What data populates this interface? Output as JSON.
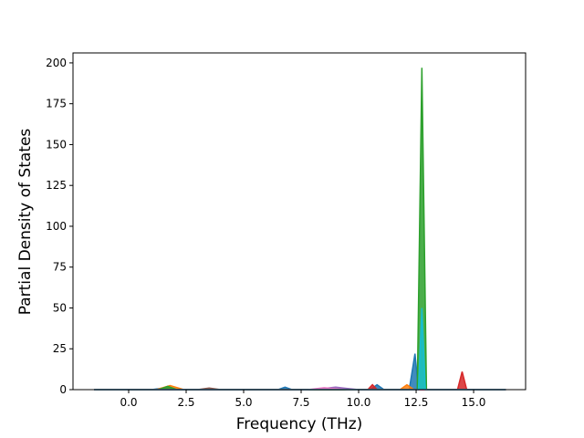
{
  "chart_data": {
    "type": "area",
    "xlabel": "Frequency (THz)",
    "ylabel": "Partial Density of States",
    "xlim": [
      -2.42,
      17.26
    ],
    "ylim": [
      0,
      206.1
    ],
    "xticks": [
      {
        "value": 0,
        "label": "0.0"
      },
      2.5,
      {
        "value": 5,
        "label": "5.0"
      },
      7.5,
      {
        "value": 10,
        "label": "10.0"
      },
      12.5,
      {
        "value": 15,
        "label": "15.0"
      }
    ],
    "yticks": [
      0,
      25,
      50,
      75,
      100,
      125,
      150,
      175,
      200
    ],
    "grid": false,
    "series": [
      {
        "color": "#1f77b4",
        "x": [
          -1.5,
          1.0,
          1.5,
          2.0,
          6.5,
          6.8,
          7.1,
          10.5,
          10.8,
          11.1,
          12.2,
          12.45,
          12.6,
          13.0,
          16.4
        ],
        "values": [
          0,
          0,
          1,
          0,
          0,
          1.5,
          0,
          0,
          3,
          0,
          0,
          22,
          0,
          0,
          0
        ]
      },
      {
        "color": "#ff7f0e",
        "x": [
          -1.5,
          1.2,
          1.8,
          2.4,
          11.8,
          12.1,
          12.4,
          16.4
        ],
        "values": [
          0,
          0,
          2.5,
          0,
          0,
          3,
          0,
          0
        ]
      },
      {
        "color": "#2ca02c",
        "x": [
          -1.5,
          1.3,
          1.7,
          2.1,
          12.55,
          12.75,
          12.95,
          16.4
        ],
        "values": [
          0,
          0,
          2,
          0,
          0,
          197,
          0,
          0
        ]
      },
      {
        "color": "#d62728",
        "x": [
          -1.5,
          10.4,
          10.6,
          10.8,
          14.3,
          14.5,
          14.7,
          16.4
        ],
        "values": [
          0,
          0,
          3,
          0,
          0,
          11,
          0,
          0
        ]
      },
      {
        "color": "#9467bd",
        "x": [
          -1.5,
          8.0,
          9.0,
          10.0,
          16.4
        ],
        "values": [
          0,
          0,
          1.5,
          0,
          0
        ]
      },
      {
        "color": "#8c564b",
        "x": [
          -1.5,
          3.0,
          3.5,
          4.0,
          16.4
        ],
        "values": [
          0,
          0,
          1,
          0,
          0
        ]
      },
      {
        "color": "#e377c2",
        "x": [
          -1.5,
          7.8,
          8.5,
          9.5,
          16.4
        ],
        "values": [
          0,
          0,
          1.2,
          0,
          0
        ]
      },
      {
        "color": "#17becf",
        "x": [
          -1.5,
          12.6,
          12.75,
          12.9,
          16.4
        ],
        "values": [
          0,
          0,
          50,
          0,
          0
        ]
      }
    ]
  }
}
